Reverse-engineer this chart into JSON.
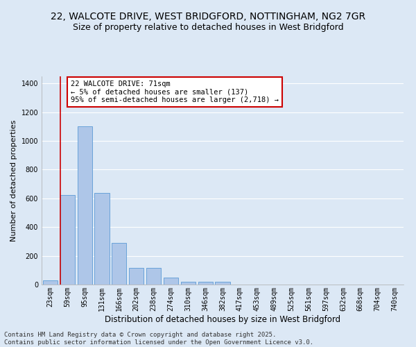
{
  "title_line1": "22, WALCOTE DRIVE, WEST BRIDGFORD, NOTTINGHAM, NG2 7GR",
  "title_line2": "Size of property relative to detached houses in West Bridgford",
  "xlabel": "Distribution of detached houses by size in West Bridgford",
  "ylabel": "Number of detached properties",
  "categories": [
    "23sqm",
    "59sqm",
    "95sqm",
    "131sqm",
    "166sqm",
    "202sqm",
    "238sqm",
    "274sqm",
    "310sqm",
    "346sqm",
    "382sqm",
    "417sqm",
    "453sqm",
    "489sqm",
    "525sqm",
    "561sqm",
    "597sqm",
    "632sqm",
    "668sqm",
    "704sqm",
    "740sqm"
  ],
  "values": [
    30,
    625,
    1100,
    640,
    290,
    118,
    118,
    46,
    20,
    20,
    20,
    0,
    0,
    0,
    0,
    0,
    0,
    0,
    0,
    0,
    0
  ],
  "bar_color": "#aec6e8",
  "bar_edge_color": "#5b9bd5",
  "vline_x_idx": 1,
  "vline_color": "#cc0000",
  "annotation_text_line1": "22 WALCOTE DRIVE: 71sqm",
  "annotation_text_line2": "← 5% of detached houses are smaller (137)",
  "annotation_text_line3": "95% of semi-detached houses are larger (2,718) →",
  "annotation_box_color": "#ffffff",
  "annotation_box_edge_color": "#cc0000",
  "ylim": [
    0,
    1450
  ],
  "background_color": "#dce8f5",
  "grid_color": "#ffffff",
  "footer_line1": "Contains HM Land Registry data © Crown copyright and database right 2025.",
  "footer_line2": "Contains public sector information licensed under the Open Government Licence v3.0.",
  "title_fontsize": 10,
  "subtitle_fontsize": 9,
  "xlabel_fontsize": 8.5,
  "ylabel_fontsize": 8,
  "tick_fontsize": 7,
  "annotation_fontsize": 7.5,
  "footer_fontsize": 6.5
}
